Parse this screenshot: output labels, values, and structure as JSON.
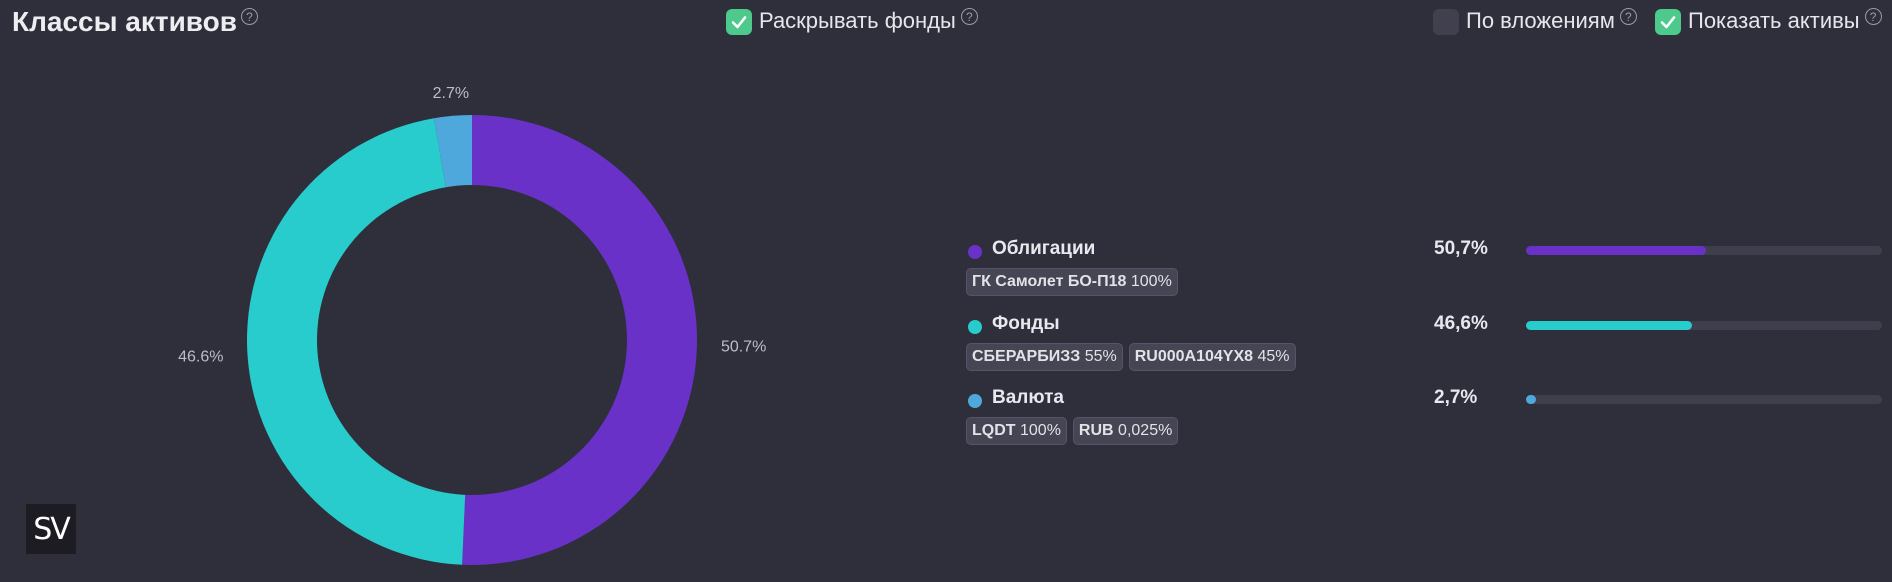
{
  "header": {
    "title": "Классы активов",
    "help_symbol": "?",
    "toggles": [
      {
        "label": "Раскрывать фонды",
        "checked": true
      },
      {
        "label": "По вложениям",
        "checked": false
      },
      {
        "label": "Показать активы",
        "checked": true
      }
    ]
  },
  "chart_data": {
    "type": "pie",
    "variant": "donut",
    "slices": [
      {
        "label": "Облигации",
        "value": 50.7,
        "display": "50.7%",
        "color": "#6a31c9"
      },
      {
        "label": "Фонды",
        "value": 46.6,
        "display": "46.6%",
        "color": "#28cccc"
      },
      {
        "label": "Валюта",
        "value": 2.7,
        "display": "2.7%",
        "color": "#4fa8dc"
      }
    ]
  },
  "legend": {
    "categories": [
      {
        "name": "Облигации",
        "percent": "50,7%",
        "fraction": 0.507,
        "color": "#6a31c9",
        "holdings": [
          {
            "name": "ГК Самолет БО-П18",
            "share": "100%"
          }
        ]
      },
      {
        "name": "Фонды",
        "percent": "46,6%",
        "fraction": 0.466,
        "color": "#28cccc",
        "holdings": [
          {
            "name": "СБЕРАРБИЗЗ",
            "share": "55%"
          },
          {
            "name": "RU000A104YX8",
            "share": "45%"
          }
        ]
      },
      {
        "name": "Валюта",
        "percent": "2,7%",
        "fraction": 0.027,
        "color": "#4fa8dc",
        "holdings": [
          {
            "name": "LQDT",
            "share": "100%"
          },
          {
            "name": "RUB",
            "share": "0,025%"
          }
        ]
      }
    ]
  },
  "logo": {
    "text": "SV"
  },
  "colors": {
    "background": "#2f2f3c",
    "check_on": "#4cc98b",
    "track": "#3e3e4c"
  }
}
